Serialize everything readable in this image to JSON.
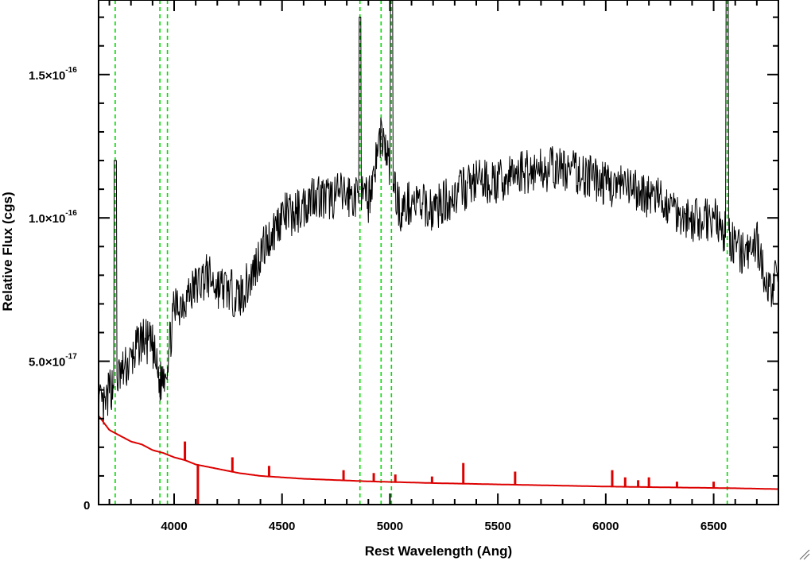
{
  "chart_data": {
    "type": "line",
    "xlabel": "Rest Wavelength (Ang)",
    "ylabel": "Relative Flux (cgs)",
    "xlim": [
      3650,
      6800
    ],
    "ylim": [
      0,
      1.76e-16
    ],
    "x_ticks": [
      {
        "value": 4000,
        "label": "4000"
      },
      {
        "value": 4500,
        "label": "4500"
      },
      {
        "value": 5000,
        "label": "5000"
      },
      {
        "value": 5500,
        "label": "5500"
      },
      {
        "value": 6000,
        "label": "6000"
      },
      {
        "value": 6500,
        "label": "6500"
      }
    ],
    "y_ticks": [
      {
        "value": 0,
        "mantissa": "0",
        "exponent": ""
      },
      {
        "value": 5e-17,
        "mantissa": "5.0×10",
        "exponent": "-17"
      },
      {
        "value": 1e-16,
        "mantissa": "1.0×10",
        "exponent": "-16"
      },
      {
        "value": 1.5e-16,
        "mantissa": "1.5×10",
        "exponent": "-16"
      }
    ],
    "emission_lines": [
      3727,
      3934,
      3969,
      4861,
      4959,
      5007,
      6563
    ],
    "series": [
      {
        "color": "#000000",
        "x": [
          3650,
          3680,
          3700,
          3727,
          3760,
          3800,
          3850,
          3900,
          3934,
          3969,
          4000,
          4050,
          4100,
          4150,
          4200,
          4250,
          4300,
          4350,
          4400,
          4450,
          4500,
          4550,
          4600,
          4650,
          4700,
          4750,
          4800,
          4861,
          4900,
          4959,
          5007,
          5050,
          5100,
          5150,
          5200,
          5300,
          5400,
          5500,
          5600,
          5700,
          5800,
          5900,
          6000,
          6100,
          6200,
          6300,
          6400,
          6500,
          6563,
          6600,
          6650,
          6700,
          6750,
          6800
        ],
        "y": [
          3.5e-17,
          3.3e-17,
          4e-17,
          1.2e-16,
          4.6e-17,
          5e-17,
          5.8e-17,
          5.5e-17,
          4.2e-17,
          5e-17,
          6.8e-17,
          7.2e-17,
          7.6e-17,
          8e-17,
          7.6e-17,
          7.5e-17,
          7.2e-17,
          7.8e-17,
          8.8e-17,
          9.4e-17,
          1.01e-16,
          1.01e-16,
          1.04e-16,
          1.09e-16,
          1.06e-16,
          1.08e-16,
          1.08e-16,
          1.7e-16,
          1.06e-16,
          1.3e-16,
          1.8e-16,
          1.02e-16,
          1.06e-16,
          1.04e-16,
          1.03e-16,
          1.08e-16,
          1.13e-16,
          1.12e-16,
          1.16e-16,
          1.17e-16,
          1.17e-16,
          1.15e-16,
          1.12e-16,
          1.1e-16,
          1.08e-16,
          1.04e-16,
          9.9e-17,
          1e-16,
          1.8e-16,
          9e-17,
          8.6e-17,
          9.2e-17,
          7.4e-17,
          8e-17
        ]
      },
      {
        "color": "#dd0000",
        "x": [
          3650,
          3700,
          3750,
          3800,
          3850,
          3900,
          3950,
          4000,
          4050,
          4100,
          4200,
          4300,
          4400,
          4500,
          4600,
          4700,
          4800,
          4900,
          5000,
          5200,
          5400,
          5600,
          5800,
          6000,
          6200,
          6400,
          6600,
          6800
        ],
        "y": [
          3.1e-17,
          2.6e-17,
          2.4e-17,
          2.2e-17,
          2.1e-17,
          1.9e-17,
          1.8e-17,
          1.65e-17,
          1.55e-17,
          1.4e-17,
          1.25e-17,
          1.1e-17,
          1e-17,
          9.5e-18,
          9e-18,
          8.7e-18,
          8.4e-18,
          8.1e-18,
          7.9e-18,
          7.5e-18,
          7.2e-18,
          6.9e-18,
          6.6e-18,
          6.3e-18,
          6.1e-18,
          5.9e-18,
          5.7e-18,
          5.4e-18
        ]
      }
    ],
    "red_spikes": [
      {
        "x": 4050,
        "y": 2.2e-17
      },
      {
        "x": 4110,
        "y": -1e-17
      },
      {
        "x": 4270,
        "y": 1.65e-17
      },
      {
        "x": 4440,
        "y": 1.35e-17
      },
      {
        "x": 4785,
        "y": 1.2e-17
      },
      {
        "x": 4925,
        "y": 1.1e-17
      },
      {
        "x": 5025,
        "y": 1.05e-17
      },
      {
        "x": 5195,
        "y": 9.8e-18
      },
      {
        "x": 5340,
        "y": 1.45e-17
      },
      {
        "x": 5580,
        "y": 1.15e-17
      },
      {
        "x": 6030,
        "y": 1.2e-17
      },
      {
        "x": 6090,
        "y": 9.5e-18
      },
      {
        "x": 6150,
        "y": 8.5e-18
      },
      {
        "x": 6200,
        "y": 9.5e-18
      },
      {
        "x": 6330,
        "y": 8e-18
      },
      {
        "x": 6500,
        "y": 8e-18
      }
    ]
  }
}
